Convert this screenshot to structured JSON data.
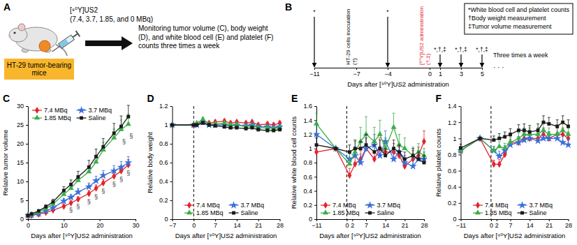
{
  "panel_a": {
    "label": "A",
    "subject": "HT-29 tumor-bearing mice",
    "compound": "[⁹⁰Y]US2",
    "doses": "(7.4, 3.7, 1.85, and 0 MBq)",
    "monitoring": "Monitoring tumor volume (C), body weight (D), and white blood cell (E) and platelet (F) counts three times a week"
  },
  "panel_b": {
    "label": "B",
    "key": [
      "*White blood cell and platelet counts",
      "†Body weight measurement",
      "‡Tumor volume measurement"
    ],
    "xlim": [
      -11,
      5
    ],
    "xticks": [
      {
        "value": -11,
        "label": "−11"
      },
      {
        "value": -7,
        "label": "−7"
      },
      {
        "value": -4,
        "label": "−4"
      },
      0,
      1,
      3,
      5
    ],
    "events": [
      {
        "day": -11,
        "label": "*"
      },
      {
        "day": -7,
        "label": "HT-29 cells inoculation (†)"
      },
      {
        "day": -4,
        "label": "*"
      },
      {
        "day": 0,
        "label": "[⁹⁰Y]US2 administration (†,‡)",
        "color": "#e3242b"
      },
      {
        "day": 1,
        "label": "*,†,‡"
      },
      {
        "day": 3,
        "label": "*,†,‡"
      },
      {
        "day": 5,
        "label": "*,†,‡"
      }
    ],
    "continuation": "· · ·",
    "note": "Three times a week",
    "x_label": "Days after [⁹⁰Y]US2 administration"
  },
  "chart_data": [
    {
      "type": "line",
      "panel_label": "C",
      "x_label": "Days after [⁹⁰Y]US2 administration",
      "y_label": "Relative tumor volume",
      "x": [
        0,
        1,
        3,
        5,
        7,
        10,
        12,
        14,
        17,
        19,
        21,
        24,
        26,
        28
      ],
      "xlim": [
        0,
        30
      ],
      "xticks": [
        0,
        10,
        20,
        30
      ],
      "ylim": [
        0,
        30
      ],
      "yticks": [
        0,
        5,
        10,
        15,
        20,
        25,
        30
      ],
      "grid": false,
      "legend": "upper left",
      "series": [
        {
          "name": "7.4 MBq",
          "color": "#e3242b",
          "marker": "diamond",
          "values": [
            1,
            1.0,
            1.3,
            1.8,
            2.4,
            3.4,
            4.3,
            5.3,
            6.8,
            8.2,
            9.6,
            11.4,
            12.8,
            14.4
          ],
          "errors": [
            0,
            0.1,
            0.2,
            0.2,
            0.3,
            0.4,
            0.5,
            0.6,
            0.8,
            0.9,
            1.0,
            1.2,
            1.3,
            1.4
          ]
        },
        {
          "name": "3.7 MBq",
          "color": "#3a6fd8",
          "marker": "star",
          "values": [
            1,
            1.1,
            1.5,
            2.2,
            3.0,
            4.8,
            5.8,
            7.2,
            8.6,
            10.2,
            11.6,
            12.8,
            13.8,
            15.0
          ],
          "errors": [
            0,
            0.1,
            0.2,
            0.3,
            0.4,
            0.6,
            0.7,
            0.9,
            1.0,
            1.2,
            1.3,
            1.4,
            1.5,
            1.6
          ]
        },
        {
          "name": "1.85 MBq",
          "color": "#3aae49",
          "marker": "triangle",
          "values": [
            1,
            1.2,
            1.9,
            2.8,
            4.0,
            6.6,
            8.2,
            10.3,
            12.6,
            15.2,
            18.4,
            21.6,
            23.8,
            25.2
          ],
          "errors": [
            0,
            0.2,
            0.3,
            0.4,
            0.6,
            0.9,
            1.1,
            1.3,
            1.5,
            1.8,
            2.0,
            2.3,
            2.5,
            2.6
          ]
        },
        {
          "name": "Saline",
          "color": "#1a1a1a",
          "marker": "square",
          "values": [
            1,
            1.4,
            2.2,
            3.3,
            4.6,
            7.6,
            9.2,
            11.2,
            13.8,
            16.6,
            19.2,
            22.8,
            24.6,
            27.2
          ],
          "errors": [
            0,
            0.2,
            0.3,
            0.5,
            0.7,
            1.0,
            1.2,
            1.5,
            1.8,
            2.0,
            2.2,
            2.6,
            2.8,
            3.0
          ]
        }
      ],
      "annotations": [
        {
          "text": "§",
          "x": 12,
          "y": 2.4
        },
        {
          "text": "§",
          "x": 14,
          "y": 3.3
        },
        {
          "text": "§",
          "x": 17,
          "y": 4.6
        },
        {
          "text": "§",
          "x": 19,
          "y": 6.0
        },
        {
          "text": "§",
          "x": 21,
          "y": 7.4
        },
        {
          "text": "§",
          "x": 24,
          "y": 9.2
        },
        {
          "text": "§",
          "x": 26,
          "y": 10.6
        },
        {
          "text": "§",
          "x": 28,
          "y": 12.2
        },
        {
          "text": "§",
          "x": 26.8,
          "y": 20.5
        },
        {
          "text": "§",
          "x": 28.8,
          "y": 22
        }
      ]
    },
    {
      "type": "line",
      "panel_label": "D",
      "x_label": "Days after [⁹⁰Y]US2 administration",
      "y_label": "Relative body weight",
      "x": [
        -7,
        0,
        1,
        3,
        5,
        7,
        10,
        12,
        14,
        17,
        19,
        21,
        24,
        26,
        28
      ],
      "xlim": [
        -7,
        28
      ],
      "xticks": [
        {
          "value": -7,
          "label": "−7"
        },
        0,
        7,
        14,
        21,
        28
      ],
      "ylim": [
        0,
        1.2
      ],
      "yticks": [
        0,
        0.2,
        0.4,
        0.6,
        0.8,
        1,
        1.2
      ],
      "grid": false,
      "legend": "lower center",
      "reference_lines": [
        {
          "x": 0,
          "line_style": "dashed"
        }
      ],
      "series": [
        {
          "name": "7.4 MBq",
          "color": "#e3242b",
          "marker": "diamond",
          "values": [
            1,
            1,
            1.01,
            1.04,
            1.02,
            1.03,
            1.04,
            1.02,
            1.03,
            1.02,
            1.03,
            1.0,
            1.01,
            1.0,
            1.02
          ],
          "errors": [
            0.01,
            0,
            0.01,
            0.02,
            0.02,
            0.02,
            0.02,
            0.02,
            0.02,
            0.02,
            0.02,
            0.02,
            0.02,
            0.02,
            0.02
          ]
        },
        {
          "name": "3.7 MBq",
          "color": "#3a6fd8",
          "marker": "star",
          "values": [
            1,
            1,
            1.0,
            1.03,
            1.0,
            1.0,
            1.0,
            0.99,
            1.0,
            0.99,
            1.0,
            0.98,
            0.98,
            0.97,
            0.98
          ],
          "errors": [
            0.01,
            0,
            0.01,
            0.02,
            0.02,
            0.02,
            0.02,
            0.02,
            0.02,
            0.02,
            0.02,
            0.02,
            0.02,
            0.02,
            0.02
          ]
        },
        {
          "name": "1.85 MBq",
          "color": "#3aae49",
          "marker": "triangle",
          "values": [
            1,
            1,
            1.02,
            1.06,
            1.01,
            1.01,
            1.02,
            1.0,
            1.0,
            0.98,
            0.99,
            0.97,
            0.97,
            0.96,
            0.97
          ],
          "errors": [
            0.01,
            0,
            0.01,
            0.02,
            0.02,
            0.02,
            0.02,
            0.02,
            0.02,
            0.02,
            0.02,
            0.02,
            0.02,
            0.02,
            0.02
          ]
        },
        {
          "name": "Saline",
          "color": "#1a1a1a",
          "marker": "square",
          "values": [
            1,
            1,
            1.0,
            1.02,
            1.0,
            0.99,
            0.98,
            0.97,
            0.97,
            0.96,
            0.97,
            0.95,
            0.94,
            0.94,
            0.95
          ],
          "errors": [
            0.01,
            0,
            0.01,
            0.02,
            0.02,
            0.02,
            0.02,
            0.02,
            0.02,
            0.02,
            0.02,
            0.02,
            0.02,
            0.02,
            0.02
          ]
        }
      ]
    },
    {
      "type": "line",
      "panel_label": "E",
      "x_label": "Days after [⁹⁰Y]US2 administration",
      "y_label": "Relative white blood cell counts",
      "x": [
        -11,
        -4,
        1,
        3,
        5,
        7,
        10,
        12,
        14,
        17,
        19,
        21,
        24,
        26,
        28
      ],
      "xlim": [
        -11,
        28
      ],
      "xticks": [
        {
          "value": -11,
          "label": "−11"
        },
        0,
        2,
        7,
        14,
        21,
        28
      ],
      "ylim": [
        0,
        1.6
      ],
      "yticks": [
        0,
        0.2,
        0.4,
        0.6,
        0.8,
        1,
        1.2,
        1.4,
        1.6
      ],
      "grid": false,
      "legend": "lower left",
      "reference_lines": [
        {
          "x": 0,
          "line_style": "dashed"
        }
      ],
      "series": [
        {
          "name": "7.4 MBq",
          "color": "#e3242b",
          "marker": "diamond",
          "values": [
            0.95,
            1,
            0.62,
            0.78,
            0.85,
            1.0,
            0.85,
            1.0,
            0.95,
            0.95,
            0.9,
            0.75,
            0.85,
            0.9,
            1.1
          ],
          "errors": [
            0.1,
            0,
            0.1,
            0.1,
            0.12,
            0.15,
            0.12,
            0.15,
            0.12,
            0.12,
            0.12,
            0.1,
            0.12,
            0.12,
            0.15
          ]
        },
        {
          "name": "3.7 MBq",
          "color": "#3a6fd8",
          "marker": "star",
          "values": [
            1.2,
            1,
            0.85,
            0.9,
            0.8,
            1.0,
            1.05,
            0.9,
            1.1,
            0.85,
            0.95,
            0.8,
            0.75,
            0.85,
            0.85
          ],
          "errors": [
            0.15,
            0,
            0.12,
            0.1,
            0.12,
            0.15,
            0.15,
            0.12,
            0.15,
            0.12,
            0.12,
            0.1,
            0.1,
            0.12,
            0.1
          ]
        },
        {
          "name": "1.85 MBq",
          "color": "#3aae49",
          "marker": "triangle",
          "values": [
            1.35,
            1,
            0.78,
            0.95,
            1.1,
            1.2,
            1.1,
            1.2,
            1.0,
            1.3,
            1.05,
            1.0,
            0.9,
            0.95,
            0.9
          ],
          "errors": [
            0.15,
            0,
            0.15,
            0.15,
            0.2,
            0.25,
            0.2,
            0.2,
            0.15,
            0.2,
            0.15,
            0.15,
            0.12,
            0.12,
            0.1
          ]
        },
        {
          "name": "Saline",
          "color": "#1a1a1a",
          "marker": "square",
          "values": [
            1.05,
            1,
            0.95,
            1.0,
            1.0,
            1.05,
            0.95,
            1.0,
            0.9,
            1.0,
            0.95,
            0.85,
            0.9,
            0.85,
            0.8
          ],
          "errors": [
            0.1,
            0,
            0.1,
            0.12,
            0.1,
            0.15,
            0.1,
            0.12,
            0.1,
            0.12,
            0.1,
            0.1,
            0.1,
            0.1,
            0.1
          ]
        }
      ]
    },
    {
      "type": "line",
      "panel_label": "F",
      "x_label": "Days after [⁹⁰Y]US2 administration",
      "y_label": "Relative platelet counts",
      "x": [
        -11,
        -4,
        1,
        3,
        5,
        7,
        10,
        12,
        14,
        17,
        19,
        21,
        24,
        26,
        28
      ],
      "xlim": [
        -11,
        28
      ],
      "xticks": [
        {
          "value": -11,
          "label": "−11"
        },
        0,
        2,
        7,
        14,
        21,
        28
      ],
      "ylim": [
        0,
        1.4
      ],
      "yticks": [
        0,
        0.2,
        0.4,
        0.6,
        0.8,
        1,
        1.2,
        1.4
      ],
      "grid": false,
      "legend": "lower center",
      "reference_lines": [
        {
          "x": 0,
          "line_style": "dashed"
        }
      ],
      "series": [
        {
          "name": "7.4 MBq",
          "color": "#e3242b",
          "marker": "diamond",
          "values": [
            0.85,
            1,
            0.68,
            0.68,
            0.8,
            0.95,
            0.95,
            1.0,
            1.0,
            1.0,
            1.05,
            1.0,
            1.05,
            1.05,
            1.0
          ],
          "errors": [
            0.05,
            0,
            0.05,
            0.06,
            0.06,
            0.07,
            0.07,
            0.08,
            0.08,
            0.08,
            0.08,
            0.08,
            0.08,
            0.08,
            0.08
          ]
        },
        {
          "name": "3.7 MBq",
          "color": "#3a6fd8",
          "marker": "star",
          "values": [
            0.85,
            1,
            0.85,
            0.78,
            0.85,
            0.92,
            0.95,
            0.98,
            1.0,
            0.97,
            1.0,
            1.0,
            1.0,
            0.95,
            0.92
          ],
          "errors": [
            0.05,
            0,
            0.05,
            0.06,
            0.06,
            0.07,
            0.07,
            0.08,
            0.08,
            0.08,
            0.08,
            0.08,
            0.08,
            0.08,
            0.08
          ]
        },
        {
          "name": "1.85 MBq",
          "color": "#3aae49",
          "marker": "triangle",
          "values": [
            0.85,
            1,
            0.85,
            0.9,
            0.88,
            0.95,
            1.0,
            1.05,
            1.05,
            1.05,
            1.1,
            1.05,
            1.05,
            1.1,
            1.05
          ],
          "errors": [
            0.05,
            0,
            0.05,
            0.06,
            0.06,
            0.07,
            0.07,
            0.08,
            0.08,
            0.08,
            0.08,
            0.08,
            0.08,
            0.08,
            0.08
          ]
        },
        {
          "name": "Saline",
          "color": "#1a1a1a",
          "marker": "square",
          "values": [
            0.88,
            1,
            0.98,
            1.0,
            1.02,
            1.05,
            1.1,
            1.1,
            1.08,
            1.1,
            1.2,
            1.18,
            1.15,
            1.2,
            1.15
          ],
          "errors": [
            0.05,
            0,
            0.05,
            0.06,
            0.06,
            0.07,
            0.07,
            0.08,
            0.08,
            0.08,
            0.08,
            0.08,
            0.08,
            0.08,
            0.08
          ]
        }
      ]
    }
  ]
}
